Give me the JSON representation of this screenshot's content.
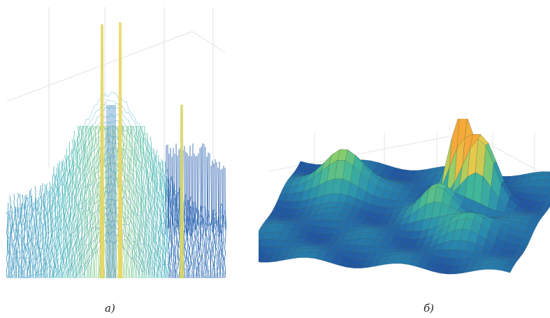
{
  "figure": {
    "panels": [
      {
        "id": "a",
        "caption": "а)",
        "type": "mesh_wireframe_surface",
        "colormap": [
          "#1f3fa0",
          "#2a7fbf",
          "#39b4b8",
          "#6cc99a",
          "#c9d86a",
          "#f2d35a"
        ]
      },
      {
        "id": "b",
        "caption": "б)",
        "type": "mesh_faceted_surface",
        "colormap": [
          "#1f4fa0",
          "#2a8fb0",
          "#3fb59a",
          "#8fcf6a",
          "#e8c84a",
          "#f4a93a"
        ]
      }
    ]
  }
}
